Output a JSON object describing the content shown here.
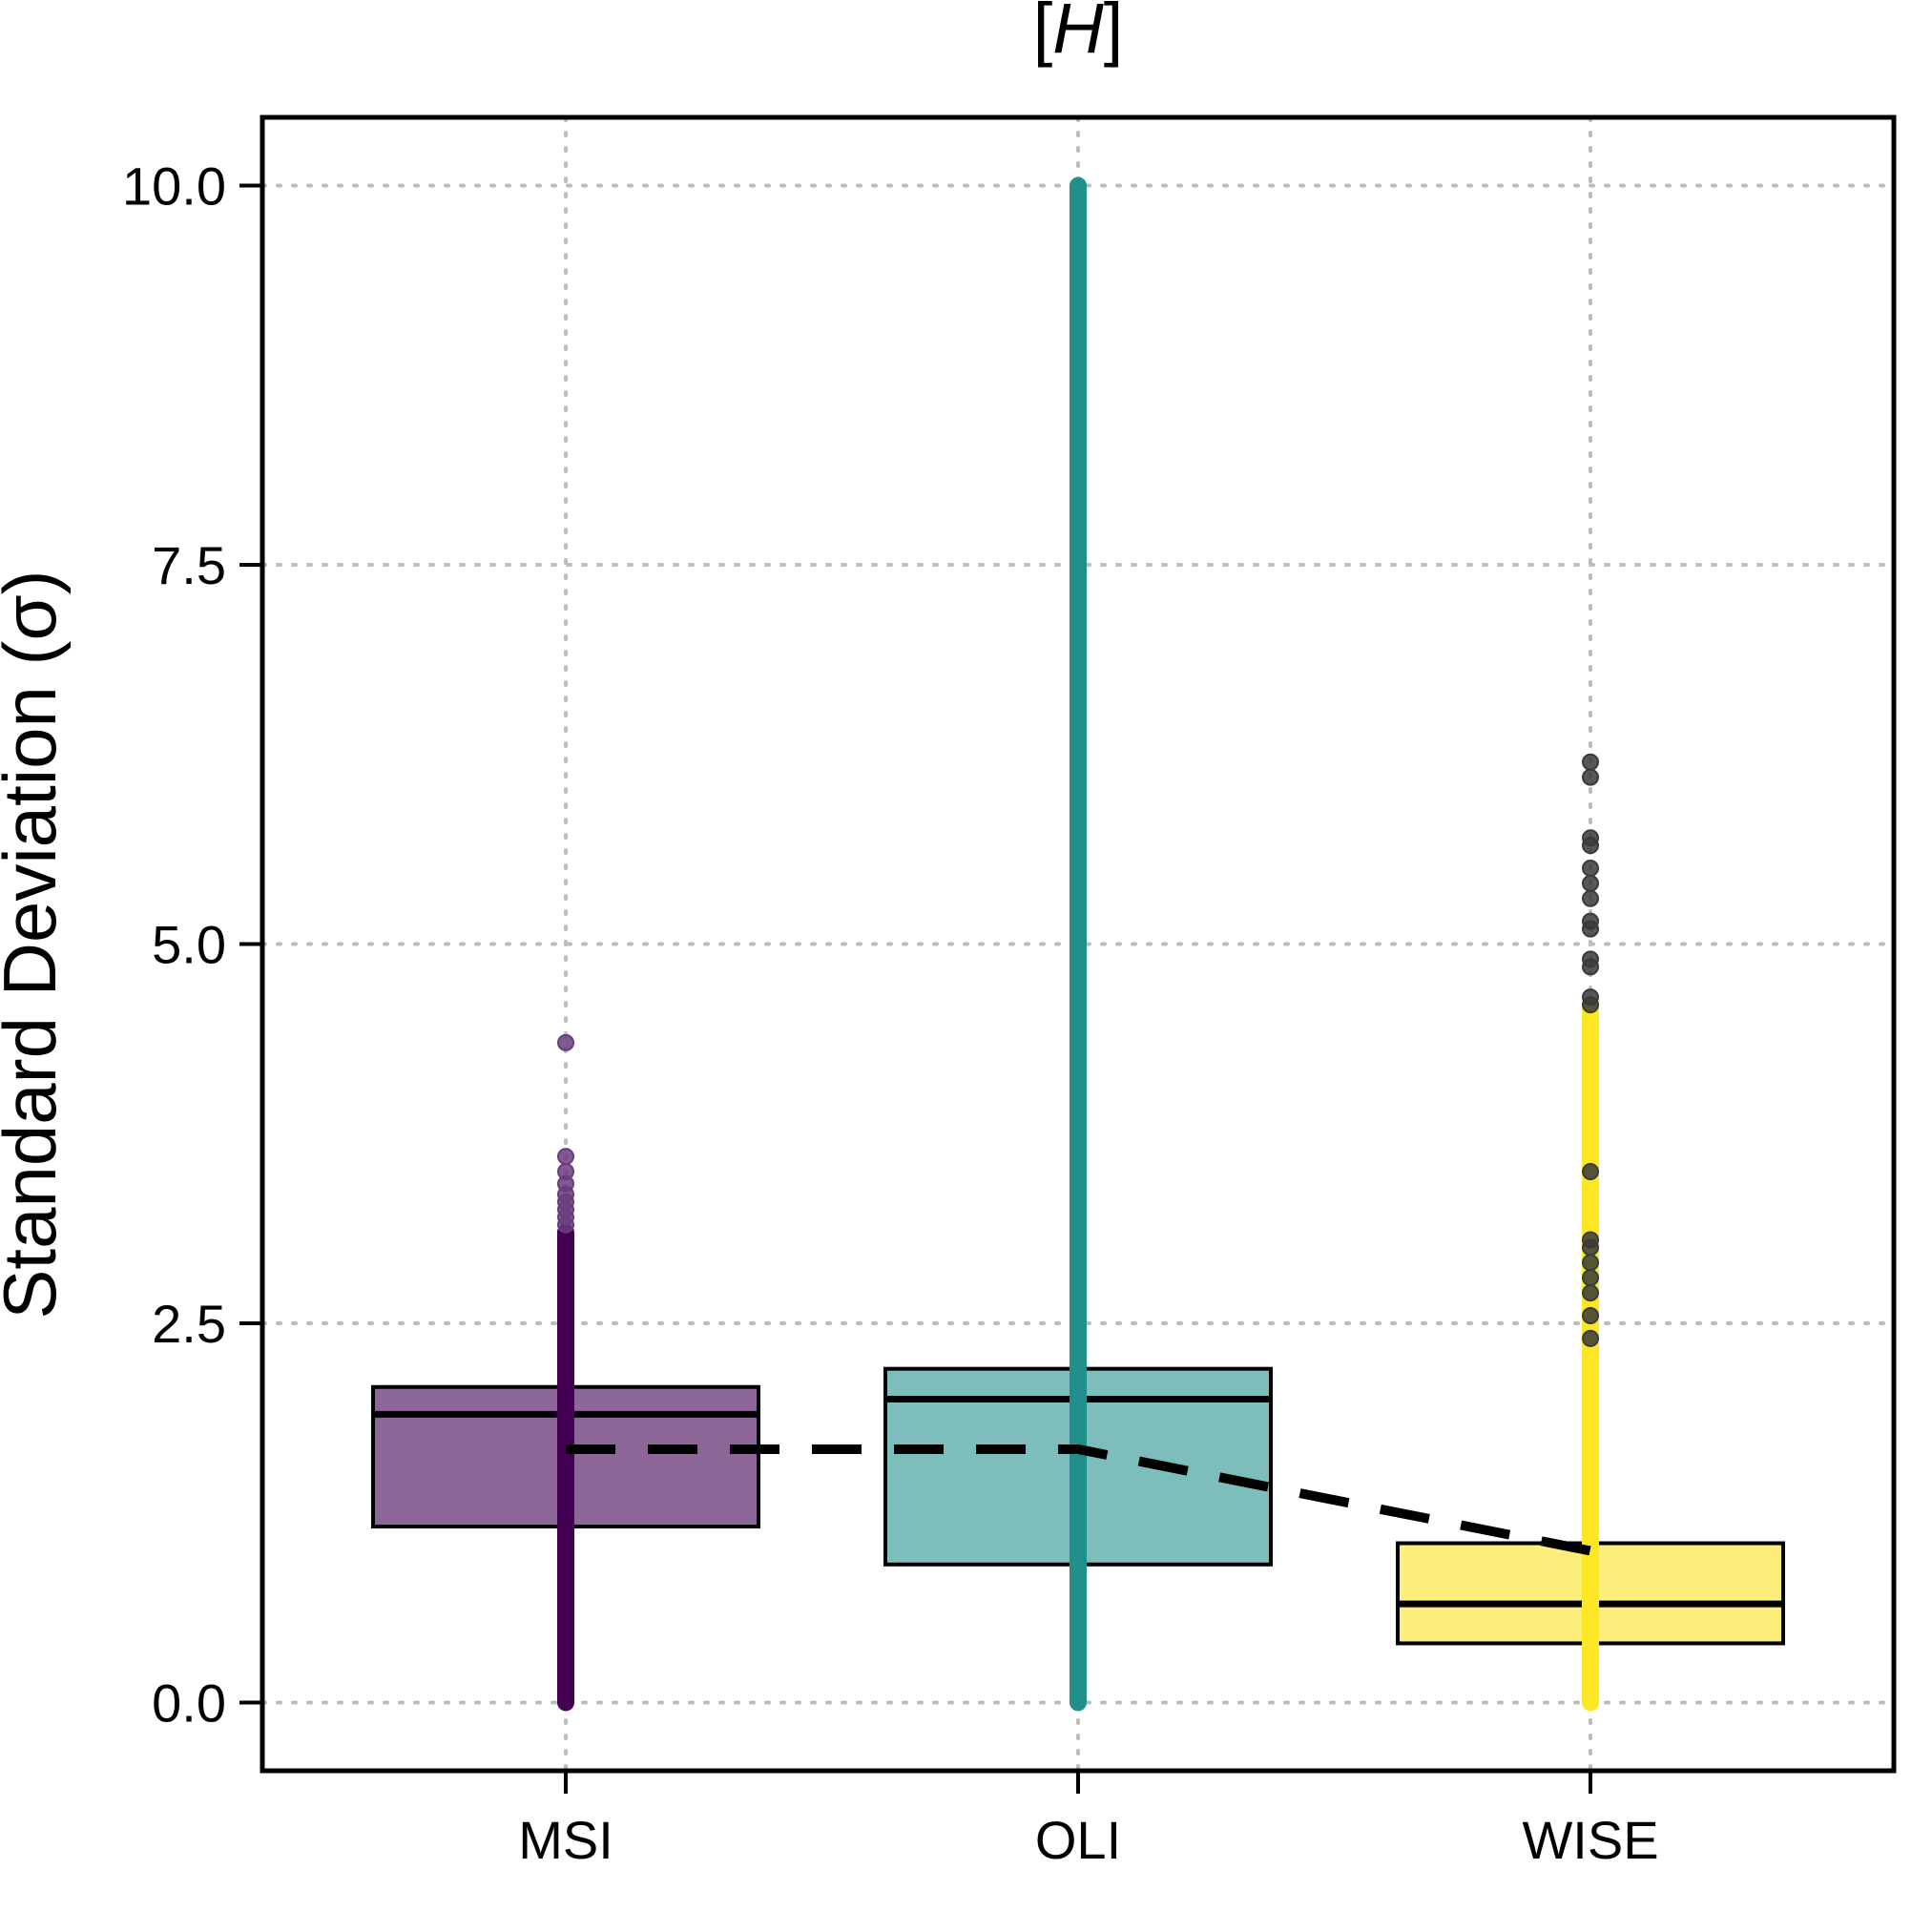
{
  "chart_data": {
    "type": "box",
    "title_prefix": "[",
    "title_symbol": "H",
    "title_suffix": "]",
    "xlabel": "",
    "ylabel": "Standard Deviation (σ)",
    "categories": [
      "MSI",
      "OLI",
      "WISE"
    ],
    "ylim": [
      -0.45,
      10.45
    ],
    "yticks": [
      0.0,
      2.5,
      5.0,
      7.5,
      10.0
    ],
    "ytick_labels": [
      "0.0",
      "2.5",
      "5.0",
      "7.5",
      "10.0"
    ],
    "grid": true,
    "grid_style": "dotted",
    "boxes": [
      {
        "category": "MSI",
        "q1": 1.16,
        "median": 1.9,
        "q3": 2.08,
        "color": "#8e6799",
        "strip_color": "#440154",
        "strip_min": 0.0,
        "strip_max": 3.1,
        "outliers": [
          3.15,
          3.2,
          3.25,
          3.3,
          3.35,
          3.42,
          3.5,
          3.6,
          4.35
        ],
        "outlier_color": "#6a3d7e"
      },
      {
        "category": "OLI",
        "q1": 0.91,
        "median": 2.0,
        "q3": 2.2,
        "color": "#7dbdbb",
        "strip_color": "#21908c",
        "strip_min": 0.0,
        "strip_max": 10.0,
        "outliers": [],
        "outlier_color": "#21908c"
      },
      {
        "category": "WISE",
        "q1": 0.39,
        "median": 0.65,
        "q3": 1.05,
        "color": "#fbee7d",
        "strip_color": "#fde725",
        "strip_min": 0.0,
        "strip_max": 4.6,
        "outliers": [
          2.4,
          2.55,
          2.7,
          2.8,
          2.9,
          3.0,
          3.05,
          3.5,
          4.6,
          4.65,
          4.85,
          4.9,
          5.1,
          5.15,
          5.3,
          5.4,
          5.5,
          5.65,
          5.7,
          6.1,
          6.2
        ],
        "outlier_color": "#3a3a3a"
      }
    ],
    "mean_line": {
      "style": "dashed",
      "color": "#000000",
      "values": [
        1.67,
        1.67,
        1.0
      ]
    }
  }
}
